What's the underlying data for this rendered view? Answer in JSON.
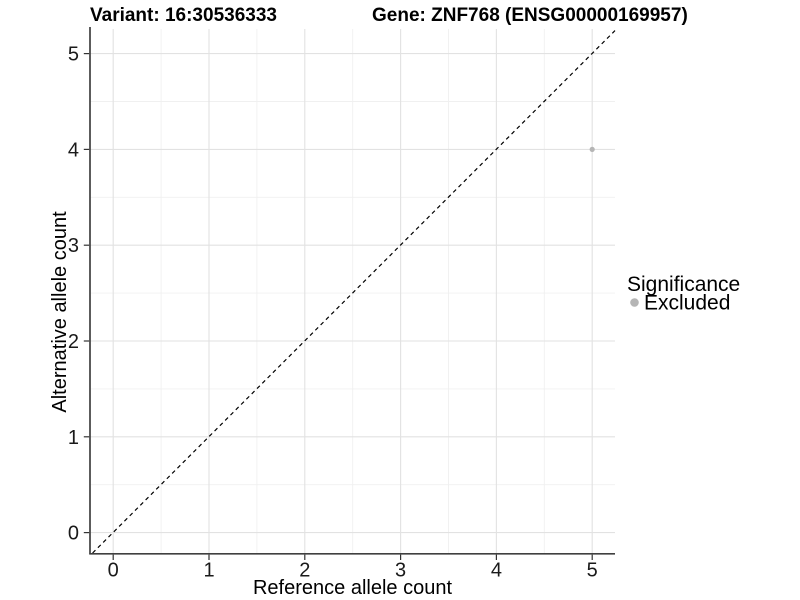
{
  "chart_data": {
    "type": "scatter",
    "titles": {
      "variant": "Variant: 16:30536333",
      "gene": "Gene: ZNF768 (ENSG00000169957)"
    },
    "xlabel": "Reference allele count",
    "ylabel": "Alternative allele count",
    "xlim": [
      -0.25,
      5.25
    ],
    "ylim": [
      -0.25,
      5.25
    ],
    "xticks": [
      "0",
      "1",
      "2",
      "3",
      "4",
      "5"
    ],
    "yticks": [
      "0",
      "1",
      "2",
      "3",
      "4",
      "5"
    ],
    "grid": {
      "major": true,
      "minor": true
    },
    "series": [
      {
        "name": "Excluded",
        "color": "#b5b5b5",
        "points": [
          {
            "x": 5,
            "y": 4
          }
        ]
      }
    ],
    "identity_line": {
      "equation": "y = x",
      "style": "dashed",
      "color": "#000000"
    },
    "legend": {
      "position": "right",
      "title": "Significance",
      "items": [
        {
          "label": "Excluded",
          "color": "#b5b5b5"
        }
      ]
    }
  }
}
